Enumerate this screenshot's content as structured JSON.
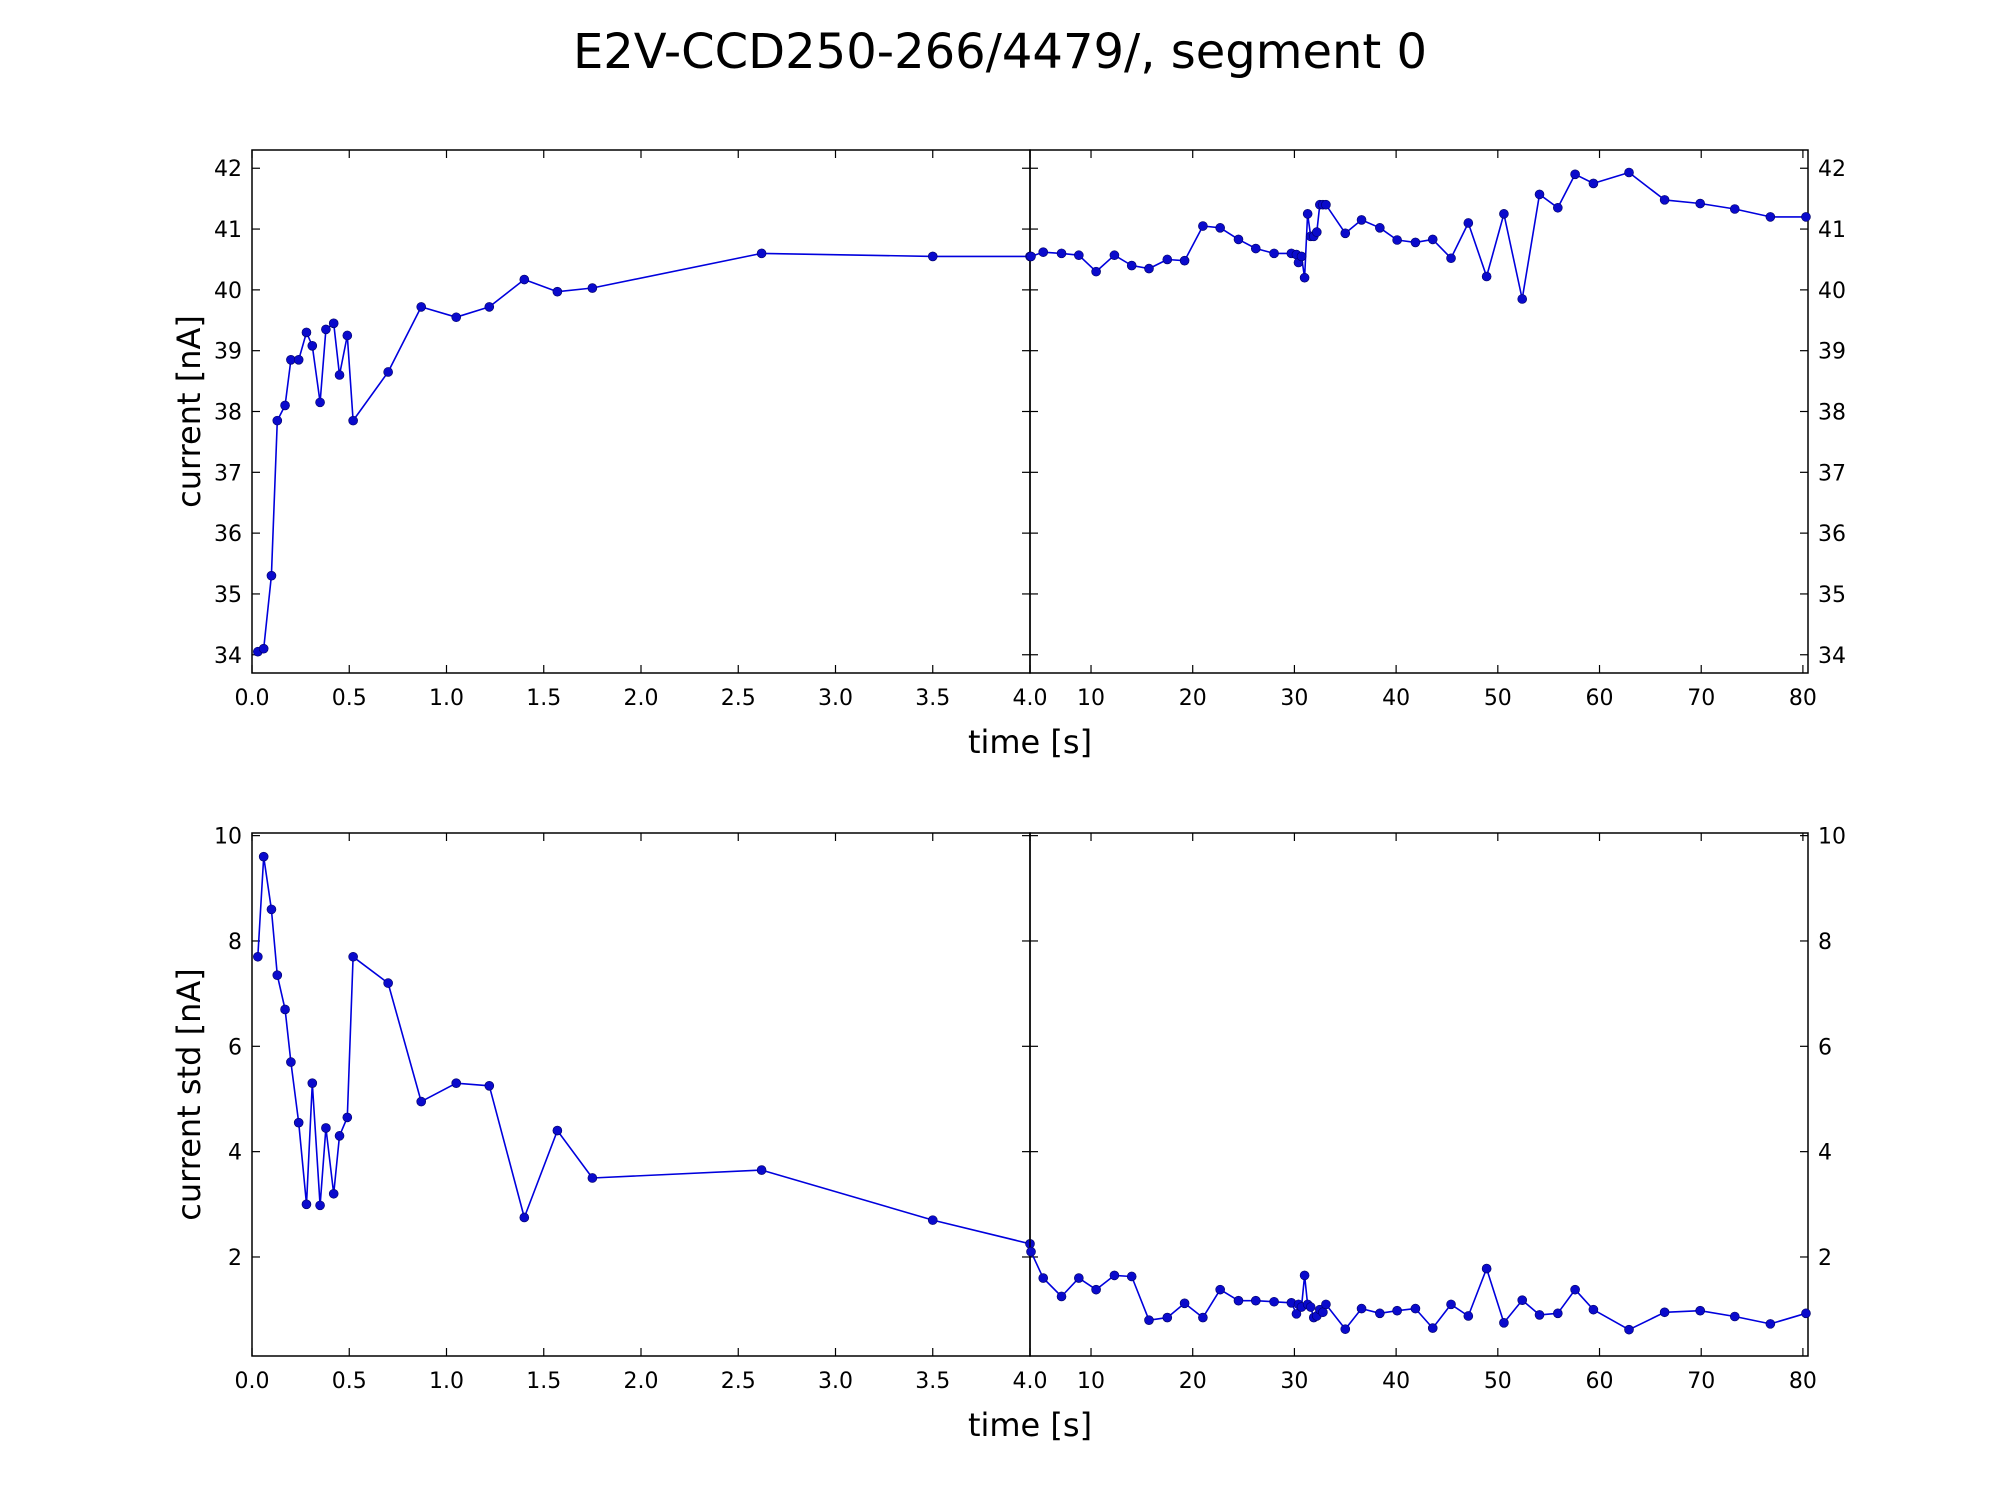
{
  "title": "E2V-CCD250-266/4479/, segment 0",
  "colors": {
    "series": "#0000dd",
    "marker": "#0a0acc",
    "axes": "#000000"
  },
  "chart_data": [
    {
      "type": "line",
      "panel": "top-left",
      "ylabel": "current [nA]",
      "xlabel": "time [s]",
      "xlim": [
        0,
        4.0
      ],
      "ylim": [
        33.7,
        42.3
      ],
      "xticks": [
        0,
        0.5,
        1.0,
        1.5,
        2.0,
        2.5,
        3.0,
        3.5
      ],
      "xtick_labels": [
        "0.0",
        "0.5",
        "1.0",
        "1.5",
        "2.0",
        "2.5",
        "3.0",
        "3.5"
      ],
      "yticks": [
        34,
        35,
        36,
        37,
        38,
        39,
        40,
        41,
        42
      ],
      "ytick_labels": [
        "34",
        "35",
        "36",
        "37",
        "38",
        "39",
        "40",
        "41",
        "42"
      ],
      "x": [
        0.03,
        0.06,
        0.1,
        0.13,
        0.17,
        0.2,
        0.24,
        0.28,
        0.31,
        0.35,
        0.38,
        0.42,
        0.45,
        0.49,
        0.52,
        0.7,
        0.87,
        1.05,
        1.22,
        1.4,
        1.57,
        1.75,
        2.62,
        3.5,
        4.0
      ],
      "y": [
        34.05,
        34.1,
        35.3,
        37.85,
        38.1,
        38.85,
        38.85,
        39.3,
        39.08,
        38.15,
        39.35,
        39.45,
        38.6,
        39.25,
        37.85,
        38.65,
        39.72,
        39.55,
        39.72,
        40.17,
        39.97,
        40.03,
        40.6,
        40.55,
        40.55
      ],
      "markers": true
    },
    {
      "type": "line",
      "panel": "top-right",
      "xlim": [
        4,
        80.5
      ],
      "ylim": [
        33.7,
        42.3
      ],
      "xticks": [
        4,
        10,
        20,
        30,
        40,
        50,
        60,
        70,
        80
      ],
      "xtick_labels": [
        "4.0",
        "10",
        "20",
        "30",
        "40",
        "50",
        "60",
        "70",
        "80"
      ],
      "yticks": [
        34,
        35,
        36,
        37,
        38,
        39,
        40,
        41,
        42
      ],
      "ytick_labels": [
        "34",
        "35",
        "36",
        "37",
        "38",
        "39",
        "40",
        "41",
        "42"
      ],
      "x": [
        4.1,
        5.3,
        7.1,
        8.8,
        10.5,
        12.3,
        14.0,
        15.7,
        17.5,
        19.2,
        21.0,
        22.7,
        24.5,
        26.2,
        28.0,
        29.7,
        30.2,
        30.4,
        30.7,
        31.0,
        31.3,
        31.6,
        31.9,
        32.2,
        32.5,
        32.8,
        33.1,
        35.0,
        36.6,
        38.4,
        40.1,
        41.9,
        43.6,
        45.4,
        47.1,
        48.9,
        50.6,
        52.4,
        54.1,
        55.9,
        57.6,
        59.4,
        62.9,
        66.4,
        69.9,
        73.3,
        76.8,
        80.3
      ],
      "y": [
        40.55,
        40.62,
        40.6,
        40.57,
        40.3,
        40.57,
        40.4,
        40.35,
        40.5,
        40.48,
        41.05,
        41.02,
        40.83,
        40.68,
        40.6,
        40.6,
        40.58,
        40.45,
        40.55,
        40.2,
        41.25,
        40.88,
        40.88,
        40.95,
        41.4,
        41.4,
        41.4,
        40.93,
        41.15,
        41.02,
        40.82,
        40.78,
        40.83,
        40.52,
        41.1,
        40.22,
        41.25,
        39.85,
        41.57,
        41.35,
        41.9,
        41.75,
        41.93,
        41.48,
        41.42,
        41.33,
        41.2,
        41.2
      ],
      "markers": true
    },
    {
      "type": "line",
      "panel": "bottom-left",
      "ylabel": "current std [nA]",
      "xlabel": "time [s]",
      "xlim": [
        0,
        4.0
      ],
      "ylim": [
        0.12,
        10.05
      ],
      "xticks": [
        0,
        0.5,
        1.0,
        1.5,
        2.0,
        2.5,
        3.0,
        3.5
      ],
      "xtick_labels": [
        "0.0",
        "0.5",
        "1.0",
        "1.5",
        "2.0",
        "2.5",
        "3.0",
        "3.5"
      ],
      "yticks": [
        2,
        4,
        6,
        8,
        10
      ],
      "ytick_labels": [
        "2",
        "4",
        "6",
        "8",
        "10"
      ],
      "x": [
        0.03,
        0.06,
        0.1,
        0.13,
        0.17,
        0.2,
        0.24,
        0.28,
        0.31,
        0.35,
        0.38,
        0.42,
        0.45,
        0.49,
        0.52,
        0.7,
        0.87,
        1.05,
        1.22,
        1.4,
        1.57,
        1.75,
        2.62,
        3.5,
        4.0
      ],
      "y": [
        7.7,
        9.6,
        8.6,
        7.35,
        6.7,
        5.7,
        4.55,
        3.0,
        5.3,
        2.98,
        4.45,
        3.2,
        4.3,
        4.65,
        7.7,
        7.2,
        4.95,
        5.3,
        5.25,
        2.75,
        4.4,
        3.5,
        3.65,
        2.7,
        2.25
      ],
      "markers": true
    },
    {
      "type": "line",
      "panel": "bottom-right",
      "xlim": [
        4,
        80.5
      ],
      "ylim": [
        0.12,
        10.05
      ],
      "xticks": [
        4,
        10,
        20,
        30,
        40,
        50,
        60,
        70,
        80
      ],
      "xtick_labels": [
        "4.0",
        "10",
        "20",
        "30",
        "40",
        "50",
        "60",
        "70",
        "80"
      ],
      "yticks": [
        2,
        4,
        6,
        8,
        10
      ],
      "ytick_labels": [
        "2",
        "4",
        "6",
        "8",
        "10"
      ],
      "x": [
        4.1,
        5.3,
        7.1,
        8.8,
        10.5,
        12.3,
        14.0,
        15.7,
        17.5,
        19.2,
        21.0,
        22.7,
        24.5,
        26.2,
        28.0,
        29.7,
        30.2,
        30.4,
        30.7,
        31.0,
        31.3,
        31.6,
        31.9,
        32.2,
        32.5,
        32.8,
        33.1,
        35.0,
        36.6,
        38.4,
        40.1,
        41.9,
        43.6,
        45.4,
        47.1,
        48.9,
        50.6,
        52.4,
        54.1,
        55.9,
        57.6,
        59.4,
        62.9,
        66.4,
        69.9,
        73.3,
        76.8,
        80.3
      ],
      "y": [
        2.1,
        1.6,
        1.25,
        1.6,
        1.38,
        1.65,
        1.63,
        0.8,
        0.85,
        1.12,
        0.85,
        1.38,
        1.17,
        1.17,
        1.15,
        1.13,
        0.92,
        1.1,
        1.05,
        1.65,
        1.1,
        1.05,
        0.85,
        0.88,
        1.0,
        0.95,
        1.1,
        0.63,
        1.02,
        0.93,
        0.98,
        1.02,
        0.65,
        1.1,
        0.88,
        1.78,
        0.75,
        1.18,
        0.9,
        0.93,
        1.38,
        1.0,
        0.62,
        0.95,
        0.98,
        0.87,
        0.73,
        0.93
      ],
      "markers": true
    }
  ]
}
